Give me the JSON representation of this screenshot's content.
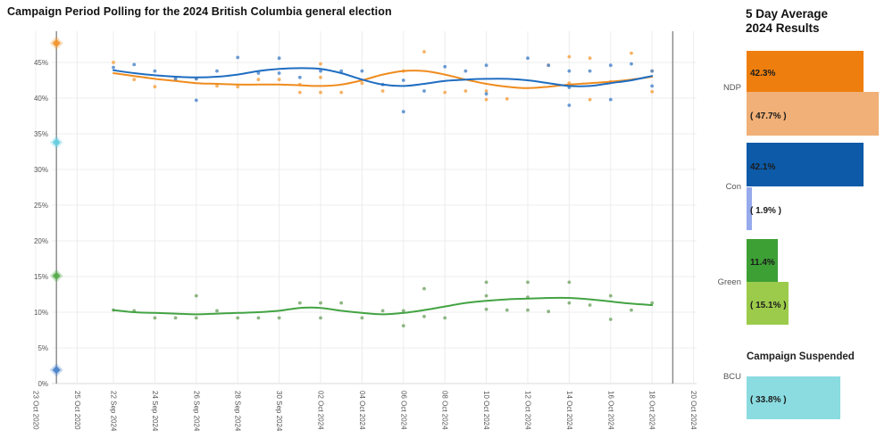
{
  "title": "Campaign Period Polling for the 2024 British Columbia general election",
  "panel": {
    "title_line1": "5 Day Average",
    "title_line2": "2024 Results",
    "suspended_note": "Campaign Suspended",
    "parties": [
      {
        "label": "NDP",
        "avg": 42.3,
        "avg_label": "42.3%",
        "avg_color": "#ee7f0e",
        "result": 47.7,
        "result_label": "( 47.7% )",
        "result_color": "#f0b077"
      },
      {
        "label": "Con",
        "avg": 42.1,
        "avg_label": "42.1%",
        "avg_color": "#0c5aa8",
        "result": 1.9,
        "result_label": "( 1.9% )",
        "result_color": "#96aaec"
      },
      {
        "label": "Green",
        "avg": 11.4,
        "avg_label": "11.4%",
        "avg_color": "#3da035",
        "result": 15.1,
        "result_label": "( 15.1% )",
        "result_color": "#9ccb4b"
      },
      {
        "label": "BCU",
        "avg": null,
        "avg_label": "",
        "avg_color": null,
        "result": 33.8,
        "result_label": "( 33.8% )",
        "result_color": "#8adce0",
        "suspended": true
      }
    ]
  },
  "chart_data": {
    "type": "scatter",
    "title": "Campaign Period Polling for the 2024 British Columbia general election",
    "xlabel": "",
    "ylabel": "",
    "grid": true,
    "legend": "none",
    "y_axis": {
      "min": 0,
      "max": 50,
      "tick_step": 5,
      "tick_labels": [
        "0%",
        "5%",
        "10%",
        "15%",
        "20%",
        "25%",
        "30%",
        "35%",
        "40%",
        "45%"
      ]
    },
    "x_axis": {
      "ticks": [
        {
          "label": "23 Oct 2020",
          "date": "2020-10-23"
        },
        {
          "label": "25 Oct 2020",
          "date": "2020-10-25"
        },
        {
          "label": "22 Sep 2024",
          "date": "2024-09-22"
        },
        {
          "label": "24 Sep 2024",
          "date": "2024-09-24"
        },
        {
          "label": "26 Sep 2024",
          "date": "2024-09-26"
        },
        {
          "label": "28 Sep 2024",
          "date": "2024-09-28"
        },
        {
          "label": "30 Sep 2024",
          "date": "2024-09-30"
        },
        {
          "label": "02 Oct 2024",
          "date": "2024-10-02"
        },
        {
          "label": "04 Oct 2024",
          "date": "2024-10-04"
        },
        {
          "label": "06 Oct 2024",
          "date": "2024-10-06"
        },
        {
          "label": "08 Oct 2024",
          "date": "2024-10-08"
        },
        {
          "label": "10 Oct 2024",
          "date": "2024-10-10"
        },
        {
          "label": "12 Oct 2024",
          "date": "2024-10-12"
        },
        {
          "label": "14 Oct 2024",
          "date": "2024-10-14"
        },
        {
          "label": "16 Oct 2024",
          "date": "2024-10-16"
        },
        {
          "label": "18 Oct 2024",
          "date": "2024-10-18"
        },
        {
          "label": "20 Oct 2024",
          "date": "2024-10-20"
        }
      ]
    },
    "election_day_lines": [
      "2020-10-24",
      "2024-10-19"
    ],
    "results_2020": {
      "date": "2020-10-24",
      "points": [
        {
          "party": "NDP",
          "value": 47.7,
          "color": "#f0962e"
        },
        {
          "party": "BCU",
          "value": 33.8,
          "color": "#66cde0"
        },
        {
          "party": "Green",
          "value": 15.1,
          "color": "#57ab4d"
        },
        {
          "party": "Con",
          "value": 1.9,
          "color": "#4c84c9"
        }
      ]
    },
    "series": [
      {
        "name": "NDP",
        "line_color": "#ef8b1d",
        "point_color": "#f5a54a",
        "trend": {
          "start_date": "2024-09-22",
          "values": [
            43.5,
            43.1,
            42.7,
            42.4,
            42.1,
            42.0,
            41.9,
            41.9,
            41.9,
            41.8,
            41.7,
            41.9,
            42.5,
            43.3,
            43.8,
            43.8,
            43.3,
            42.6,
            42.0,
            41.6,
            41.4,
            41.6,
            41.9,
            42.1,
            42.3,
            42.6,
            43.0
          ]
        },
        "polls": [
          [
            "2024-09-22",
            45.0
          ],
          [
            "2024-09-23",
            42.6
          ],
          [
            "2024-09-24",
            41.6
          ],
          [
            "2024-09-25",
            42.7
          ],
          [
            "2024-09-26",
            42.7
          ],
          [
            "2024-09-27",
            41.7
          ],
          [
            "2024-09-28",
            41.6
          ],
          [
            "2024-09-29",
            42.6
          ],
          [
            "2024-09-30",
            42.6
          ],
          [
            "2024-10-01",
            41.9
          ],
          [
            "2024-10-01",
            40.8
          ],
          [
            "2024-10-02",
            44.8
          ],
          [
            "2024-10-02",
            42.9
          ],
          [
            "2024-10-02",
            40.8
          ],
          [
            "2024-10-03",
            40.8
          ],
          [
            "2024-10-04",
            42.1
          ],
          [
            "2024-10-05",
            41.0
          ],
          [
            "2024-10-06",
            43.8
          ],
          [
            "2024-10-07",
            46.5
          ],
          [
            "2024-10-08",
            40.8
          ],
          [
            "2024-10-09",
            41.0
          ],
          [
            "2024-10-10",
            41.0
          ],
          [
            "2024-10-10",
            39.8
          ],
          [
            "2024-10-11",
            39.9
          ],
          [
            "2024-10-13",
            44.6
          ],
          [
            "2024-10-14",
            45.8
          ],
          [
            "2024-10-14",
            42.1
          ],
          [
            "2024-10-15",
            45.6
          ],
          [
            "2024-10-15",
            39.8
          ],
          [
            "2024-10-16",
            42.3
          ],
          [
            "2024-10-17",
            46.3
          ],
          [
            "2024-10-18",
            43.8
          ],
          [
            "2024-10-18",
            40.9
          ]
        ]
      },
      {
        "name": "Con",
        "line_color": "#1f6dc1",
        "point_color": "#5088cc",
        "trend": {
          "start_date": "2024-09-22",
          "values": [
            43.9,
            43.5,
            43.2,
            43.0,
            42.9,
            43.0,
            43.3,
            43.8,
            44.1,
            44.2,
            44.1,
            43.5,
            42.6,
            41.9,
            41.7,
            42.0,
            42.4,
            42.6,
            42.7,
            42.7,
            42.5,
            42.1,
            41.7,
            41.7,
            42.1,
            42.5,
            43.1
          ]
        },
        "polls": [
          [
            "2024-09-22",
            44.3
          ],
          [
            "2024-09-23",
            44.7
          ],
          [
            "2024-09-24",
            43.8
          ],
          [
            "2024-09-25",
            42.7
          ],
          [
            "2024-09-26",
            42.7
          ],
          [
            "2024-09-26",
            39.7
          ],
          [
            "2024-09-27",
            43.8
          ],
          [
            "2024-09-28",
            45.7
          ],
          [
            "2024-09-29",
            43.5
          ],
          [
            "2024-09-30",
            45.6
          ],
          [
            "2024-09-30",
            43.5
          ],
          [
            "2024-10-01",
            42.9
          ],
          [
            "2024-10-02",
            43.8
          ],
          [
            "2024-10-03",
            43.8
          ],
          [
            "2024-10-04",
            43.8
          ],
          [
            "2024-10-05",
            41.9
          ],
          [
            "2024-10-06",
            42.5
          ],
          [
            "2024-10-06",
            38.1
          ],
          [
            "2024-10-07",
            41.0
          ],
          [
            "2024-10-08",
            44.4
          ],
          [
            "2024-10-09",
            43.8
          ],
          [
            "2024-10-10",
            44.6
          ],
          [
            "2024-10-10",
            40.6
          ],
          [
            "2024-10-12",
            45.6
          ],
          [
            "2024-10-13",
            44.6
          ],
          [
            "2024-10-14",
            43.8
          ],
          [
            "2024-10-14",
            41.5
          ],
          [
            "2024-10-14",
            39.0
          ],
          [
            "2024-10-15",
            43.8
          ],
          [
            "2024-10-16",
            44.6
          ],
          [
            "2024-10-16",
            39.8
          ],
          [
            "2024-10-17",
            44.8
          ],
          [
            "2024-10-18",
            43.8
          ],
          [
            "2024-10-18",
            41.7
          ]
        ]
      },
      {
        "name": "Green",
        "line_color": "#43a343",
        "point_color": "#79a96d",
        "trend": {
          "start_date": "2024-09-22",
          "values": [
            10.3,
            10.0,
            9.9,
            9.8,
            9.7,
            9.8,
            9.9,
            10.0,
            10.2,
            10.6,
            10.6,
            10.2,
            9.9,
            9.7,
            9.9,
            10.3,
            10.8,
            11.3,
            11.6,
            11.8,
            11.9,
            12.0,
            12.0,
            11.8,
            11.5,
            11.2,
            11.0
          ]
        },
        "polls": [
          [
            "2024-09-22",
            10.3
          ],
          [
            "2024-09-23",
            10.2
          ],
          [
            "2024-09-24",
            9.2
          ],
          [
            "2024-09-25",
            9.2
          ],
          [
            "2024-09-26",
            9.2
          ],
          [
            "2024-09-26",
            12.3
          ],
          [
            "2024-09-27",
            10.2
          ],
          [
            "2024-09-28",
            9.2
          ],
          [
            "2024-09-29",
            9.2
          ],
          [
            "2024-09-30",
            9.2
          ],
          [
            "2024-10-01",
            11.3
          ],
          [
            "2024-10-02",
            11.3
          ],
          [
            "2024-10-02",
            9.2
          ],
          [
            "2024-10-03",
            11.3
          ],
          [
            "2024-10-04",
            9.2
          ],
          [
            "2024-10-05",
            10.2
          ],
          [
            "2024-10-06",
            10.2
          ],
          [
            "2024-10-06",
            8.1
          ],
          [
            "2024-10-07",
            13.3
          ],
          [
            "2024-10-07",
            9.4
          ],
          [
            "2024-10-08",
            9.2
          ],
          [
            "2024-10-10",
            12.3
          ],
          [
            "2024-10-10",
            10.4
          ],
          [
            "2024-10-10",
            14.2
          ],
          [
            "2024-10-11",
            10.3
          ],
          [
            "2024-10-12",
            12.1
          ],
          [
            "2024-10-12",
            10.3
          ],
          [
            "2024-10-12",
            14.2
          ],
          [
            "2024-10-13",
            10.1
          ],
          [
            "2024-10-14",
            11.3
          ],
          [
            "2024-10-14",
            14.2
          ],
          [
            "2024-10-15",
            11.0
          ],
          [
            "2024-10-16",
            12.3
          ],
          [
            "2024-10-16",
            9.0
          ],
          [
            "2024-10-17",
            10.3
          ],
          [
            "2024-10-18",
            11.3
          ]
        ]
      }
    ]
  }
}
